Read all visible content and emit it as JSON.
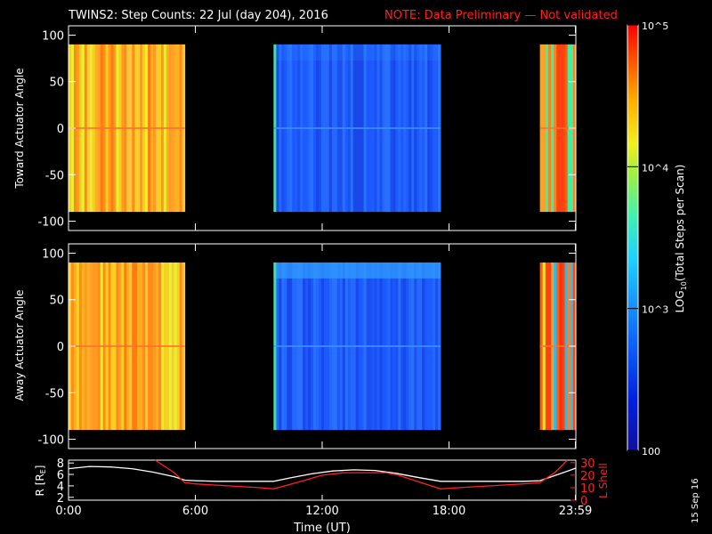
{
  "title": {
    "main": "TWINS2: Step Counts: 22 Jul (day 204), 2016",
    "note": "NOTE: Data Preliminary — Not validated"
  },
  "footer_date": "15 Sep 16",
  "colorbar": {
    "label": "LOG10(Total Steps per Scan)",
    "label_prefix": "LOG",
    "label_sub": "10",
    "label_suffix": "(Total Steps per Scan)",
    "tick_labels": [
      "100",
      "10^3",
      "10^4",
      "10^5"
    ],
    "tick_values": [
      100,
      1000,
      10000,
      100000
    ],
    "range": [
      100,
      100000
    ],
    "scale": "log"
  },
  "colors": {
    "note_red": "#ff2020",
    "background": "#000000",
    "axes": "#ffffff",
    "line_r": "#ffffff",
    "line_l": "#ff2020"
  },
  "chart_data": [
    {
      "type": "heatmap",
      "ylabel": "Toward Actuator Angle",
      "ylim": [
        -110,
        110
      ],
      "y_ticks": [
        -100,
        -50,
        0,
        50,
        100
      ],
      "x_range_hours": [
        0,
        24
      ],
      "segments": [
        {
          "start_hour": 0.0,
          "end_hour": 5.5,
          "level": "high",
          "log_value": 4.4
        },
        {
          "start_hour": 9.7,
          "end_hour": 17.6,
          "level": "low",
          "log_value": 2.8
        },
        {
          "start_hour": 22.3,
          "end_hour": 24.0,
          "level": "mixed",
          "log_value": 4.3
        }
      ]
    },
    {
      "type": "heatmap",
      "ylabel": "Away Actuator Angle",
      "ylim": [
        -110,
        110
      ],
      "y_ticks": [
        -100,
        -50,
        0,
        50,
        100
      ],
      "x_range_hours": [
        0,
        24
      ],
      "segments": [
        {
          "start_hour": 0.0,
          "end_hour": 5.5,
          "level": "high",
          "log_value": 4.4
        },
        {
          "start_hour": 9.7,
          "end_hour": 17.6,
          "level": "low",
          "log_value": 2.7
        },
        {
          "start_hour": 22.3,
          "end_hour": 24.0,
          "level": "mixed",
          "log_value": 4.3
        }
      ]
    },
    {
      "type": "line",
      "xlabel": "Time (UT)",
      "x_tick_labels": [
        "0:00",
        "6:00",
        "12:00",
        "18:00",
        "23:59"
      ],
      "x_tick_hours": [
        0,
        6,
        12,
        18,
        23.98
      ],
      "left_axis": {
        "label": "R [RE]",
        "label_main": "R [R",
        "label_sub": "E",
        "label_end": "]",
        "range": [
          1.5,
          8.5
        ],
        "ticks": [
          2,
          4,
          6,
          8
        ]
      },
      "right_axis": {
        "label": "L Shell",
        "range": [
          0,
          32
        ],
        "ticks": [
          0,
          10,
          20,
          30
        ]
      },
      "series": [
        {
          "name": "R [RE]",
          "axis": "left",
          "x": [
            0,
            1,
            2,
            3,
            4,
            5,
            5.5,
            6,
            7,
            8,
            9,
            9.7,
            10.5,
            11.5,
            12.5,
            13.5,
            14.5,
            15.5,
            16.5,
            17.6,
            18.5,
            19.5,
            20.5,
            21.5,
            22.3,
            23,
            24
          ],
          "y": [
            7.0,
            7.4,
            7.3,
            7.0,
            6.4,
            5.6,
            5.0,
            4.9,
            4.8,
            4.8,
            4.8,
            4.8,
            5.4,
            6.1,
            6.6,
            6.8,
            6.7,
            6.2,
            5.5,
            4.8,
            4.8,
            4.8,
            4.8,
            4.8,
            4.9,
            5.8,
            7.1
          ]
        },
        {
          "name": "L Shell",
          "axis": "right",
          "x": [
            4.1,
            5.0,
            5.5,
            6,
            7,
            8,
            9,
            9.7,
            11.0,
            12.0,
            13,
            14,
            15,
            15.6,
            16.5,
            17.6,
            18.5,
            19.5,
            20.5,
            21.5,
            22.3,
            23.0,
            23.6
          ],
          "y": [
            32,
            22,
            14,
            13,
            12,
            11,
            10,
            9,
            15,
            20,
            22,
            22,
            22,
            20,
            15,
            9,
            10,
            11,
            12,
            13,
            14,
            22,
            32
          ]
        }
      ]
    }
  ]
}
